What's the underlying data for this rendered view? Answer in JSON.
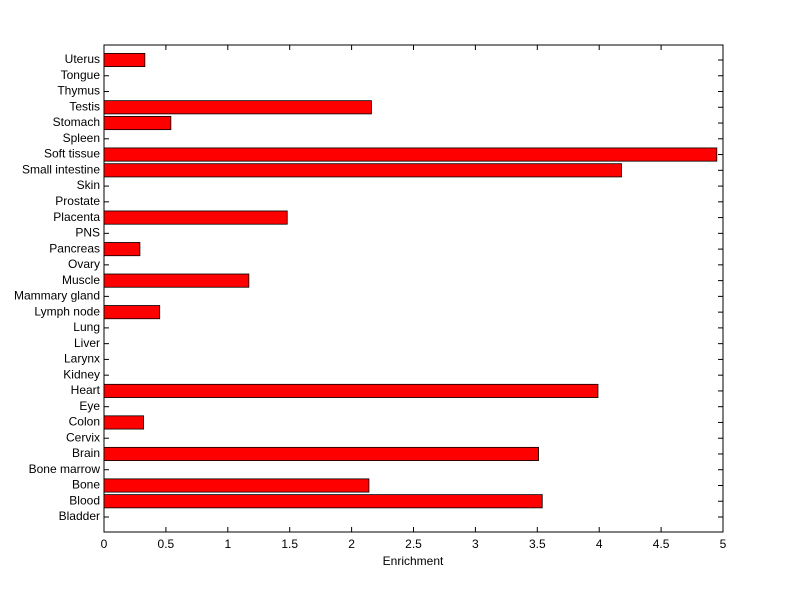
{
  "chart_data": {
    "type": "barh",
    "xlabel": "Enrichment",
    "categories": [
      "Bladder",
      "Blood",
      "Bone",
      "Bone marrow",
      "Brain",
      "Cervix",
      "Colon",
      "Eye",
      "Heart",
      "Kidney",
      "Larynx",
      "Liver",
      "Lung",
      "Lymph node",
      "Mammary gland",
      "Muscle",
      "Ovary",
      "Pancreas",
      "PNS",
      "Placenta",
      "Prostate",
      "Skin",
      "Small intestine",
      "Soft tissue",
      "Spleen",
      "Stomach",
      "Testis",
      "Thymus",
      "Tongue",
      "Uterus"
    ],
    "values": [
      0,
      3.54,
      2.14,
      0,
      3.51,
      0,
      0.32,
      0,
      3.99,
      0,
      0,
      0,
      0,
      0.45,
      0,
      1.17,
      0,
      0.29,
      0,
      1.48,
      0,
      0,
      4.18,
      4.95,
      0,
      0.54,
      2.16,
      0,
      0,
      0.33
    ],
    "color": "#ff0000",
    "xlim": [
      0,
      5
    ],
    "xticks": [
      0,
      0.5,
      1,
      1.5,
      2,
      2.5,
      3,
      3.5,
      4,
      4.5,
      5
    ],
    "grid": false
  }
}
